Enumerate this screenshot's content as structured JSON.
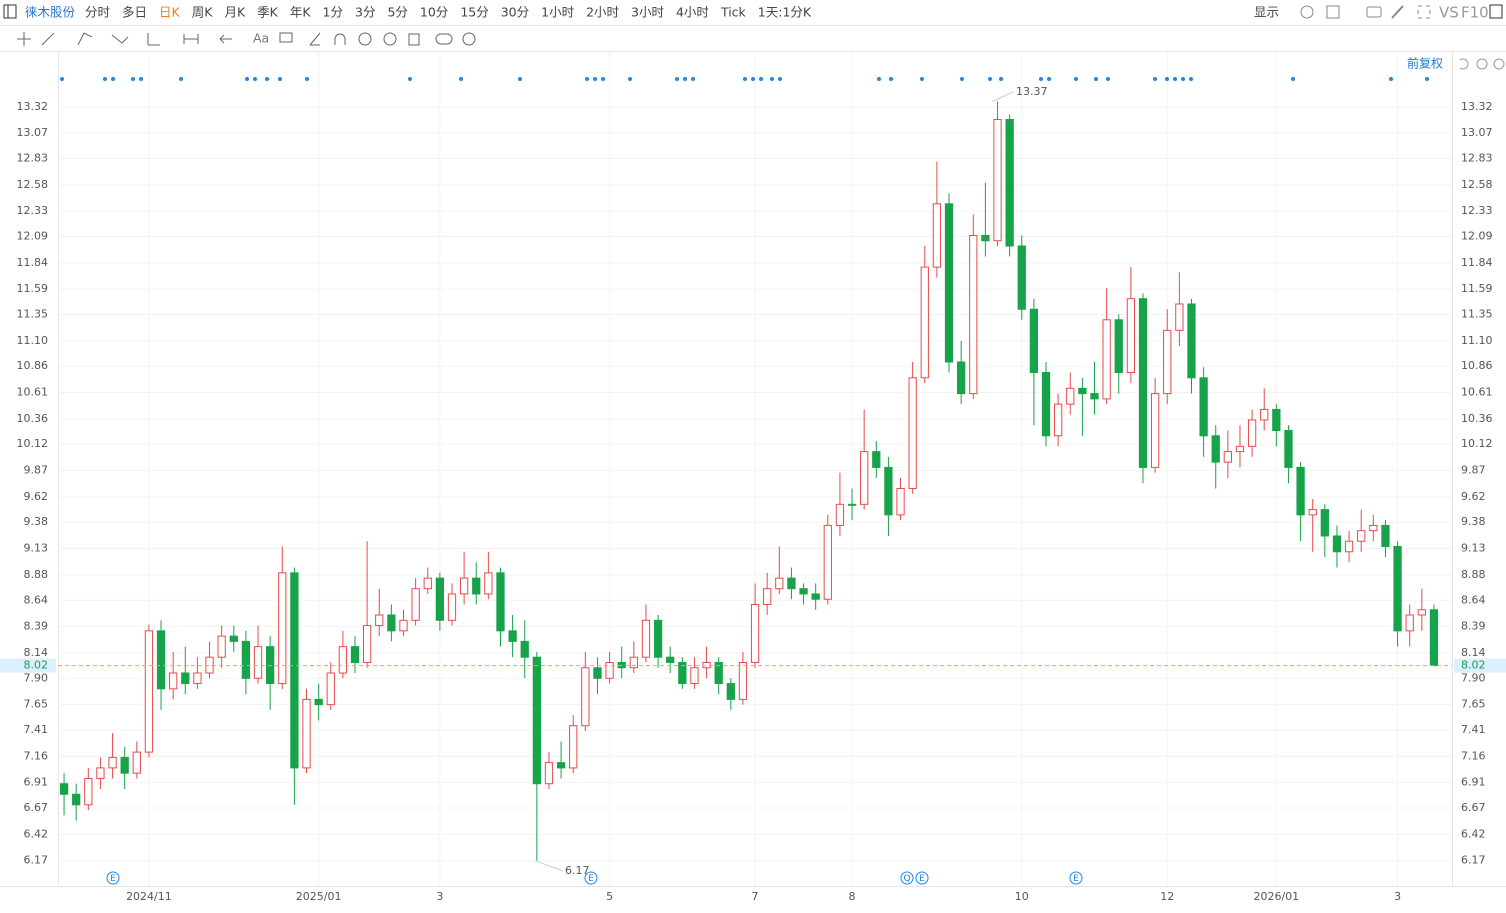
{
  "toolbar": {
    "symbol": "徕木股份",
    "periods": [
      "分时",
      "多日",
      "日K",
      "周K",
      "月K",
      "季K",
      "年K",
      "1分",
      "3分",
      "5分",
      "10分",
      "15分",
      "30分",
      "1小时",
      "2小时",
      "3小时",
      "4小时",
      "Tick",
      "1天:1分K"
    ],
    "active_period": "日K",
    "display": "显示",
    "vs": "VS",
    "f10": "F10",
    "text_tool": "Aa",
    "adjust": "前复权"
  },
  "chart_data": {
    "type": "candlestick",
    "up_color": "#e84a4a",
    "down_color": "#16a34a",
    "grid": true,
    "categories": [
      null,
      null,
      null,
      null,
      null,
      null,
      null,
      "2024/11",
      null,
      null,
      null,
      null,
      null,
      null,
      null,
      null,
      null,
      null,
      null,
      null,
      null,
      "2025/01",
      null,
      null,
      null,
      null,
      null,
      null,
      null,
      null,
      null,
      "3",
      null,
      null,
      null,
      null,
      null,
      null,
      null,
      null,
      null,
      null,
      null,
      null,
      null,
      "5",
      null,
      null,
      null,
      null,
      null,
      null,
      null,
      null,
      null,
      null,
      null,
      "7",
      null,
      null,
      null,
      null,
      null,
      null,
      null,
      "8",
      null,
      null,
      null,
      null,
      null,
      null,
      null,
      null,
      null,
      null,
      null,
      null,
      null,
      "10",
      null,
      null,
      null,
      null,
      null,
      null,
      null,
      null,
      null,
      null,
      null,
      "12",
      null,
      null,
      null,
      null,
      null,
      null,
      null,
      null,
      "2026/01",
      null,
      null,
      null,
      null,
      null,
      null,
      null,
      null,
      null,
      "3",
      null,
      null,
      null
    ],
    "open": [
      6.9,
      6.8,
      6.7,
      6.95,
      7.05,
      7.15,
      7.0,
      7.2,
      8.35,
      7.8,
      7.95,
      7.85,
      7.95,
      8.1,
      8.3,
      8.25,
      7.9,
      8.2,
      7.85,
      8.9,
      7.05,
      7.7,
      7.65,
      7.95,
      8.2,
      8.05,
      8.4,
      8.5,
      8.35,
      8.45,
      8.75,
      8.85,
      8.45,
      8.7,
      8.85,
      8.7,
      8.9,
      8.35,
      8.25,
      8.1,
      6.9,
      7.1,
      7.05,
      7.45,
      8.0,
      7.9,
      8.05,
      8.0,
      8.1,
      8.45,
      8.1,
      8.05,
      7.85,
      8.0,
      8.05,
      7.85,
      7.7,
      8.05,
      8.6,
      8.75,
      8.85,
      8.75,
      8.7,
      8.65,
      9.35,
      9.55,
      9.55,
      10.05,
      9.9,
      9.45,
      9.7,
      10.75,
      11.8,
      12.4,
      10.9,
      10.6,
      12.1,
      12.05,
      13.2,
      12.0,
      11.4,
      10.8,
      10.2,
      10.5,
      10.65,
      10.6,
      10.55,
      11.3,
      10.8,
      11.5,
      9.9,
      10.6,
      11.2,
      11.45,
      10.75,
      10.2,
      9.95,
      10.05,
      10.1,
      10.35,
      10.45,
      10.25,
      9.9,
      9.45,
      9.5,
      9.25,
      9.1,
      9.2,
      9.3,
      9.35,
      9.15,
      8.35,
      8.5,
      8.55
    ],
    "high": [
      7.0,
      6.9,
      7.05,
      7.15,
      7.38,
      7.25,
      7.3,
      8.41,
      8.45,
      8.15,
      8.2,
      8.1,
      8.25,
      8.4,
      8.4,
      8.35,
      8.4,
      8.3,
      9.15,
      8.95,
      7.8,
      7.85,
      8.05,
      8.35,
      8.3,
      9.2,
      8.75,
      8.6,
      8.55,
      8.85,
      8.95,
      8.9,
      8.8,
      9.1,
      9.0,
      9.1,
      8.95,
      8.5,
      8.45,
      8.15,
      7.2,
      7.3,
      7.55,
      8.15,
      8.1,
      8.15,
      8.2,
      8.25,
      8.6,
      8.5,
      8.2,
      8.1,
      8.1,
      8.2,
      8.1,
      7.9,
      8.15,
      8.8,
      8.9,
      9.15,
      8.95,
      8.8,
      8.8,
      9.45,
      9.85,
      9.7,
      10.45,
      10.15,
      10.0,
      9.8,
      10.9,
      12.0,
      12.8,
      12.5,
      11.1,
      12.3,
      12.6,
      13.37,
      13.25,
      12.1,
      11.5,
      10.9,
      10.6,
      10.8,
      10.75,
      10.9,
      11.6,
      11.35,
      11.8,
      11.55,
      10.75,
      11.4,
      11.75,
      11.5,
      10.85,
      10.3,
      10.25,
      10.3,
      10.45,
      10.65,
      10.5,
      10.3,
      9.95,
      9.6,
      9.55,
      9.35,
      9.3,
      9.5,
      9.45,
      9.4,
      9.2,
      8.6,
      8.75,
      8.6
    ],
    "low": [
      6.6,
      6.55,
      6.65,
      6.85,
      6.95,
      6.85,
      6.95,
      7.15,
      7.6,
      7.7,
      7.75,
      7.8,
      7.9,
      8.0,
      8.15,
      7.75,
      7.85,
      7.6,
      7.8,
      6.7,
      7.0,
      7.5,
      7.6,
      7.9,
      7.95,
      8.0,
      8.3,
      8.25,
      8.3,
      8.4,
      8.7,
      8.35,
      8.4,
      8.6,
      8.6,
      8.65,
      8.2,
      8.1,
      7.9,
      6.17,
      6.85,
      6.95,
      7.0,
      7.4,
      7.75,
      7.85,
      7.9,
      7.95,
      8.05,
      8.0,
      7.95,
      7.8,
      7.8,
      7.9,
      7.75,
      7.6,
      7.65,
      8.0,
      8.5,
      8.7,
      8.65,
      8.6,
      8.55,
      8.6,
      9.25,
      9.4,
      9.5,
      9.8,
      9.25,
      9.4,
      9.65,
      10.7,
      11.7,
      10.8,
      10.5,
      10.55,
      11.9,
      12.0,
      11.9,
      11.3,
      10.3,
      10.1,
      10.1,
      10.4,
      10.2,
      10.4,
      10.5,
      10.6,
      10.7,
      9.75,
      9.85,
      10.5,
      11.05,
      10.6,
      10.0,
      9.7,
      9.8,
      9.9,
      10.0,
      10.25,
      10.1,
      9.75,
      9.2,
      9.1,
      9.05,
      8.95,
      9.0,
      9.1,
      9.2,
      9.05,
      8.2,
      8.2,
      8.35,
      8.02
    ],
    "close": [
      6.8,
      6.7,
      6.95,
      7.05,
      7.15,
      7.0,
      7.2,
      8.35,
      7.8,
      7.95,
      7.85,
      7.95,
      8.1,
      8.3,
      8.25,
      7.9,
      8.2,
      7.85,
      8.9,
      7.05,
      7.7,
      7.65,
      7.95,
      8.2,
      8.05,
      8.4,
      8.5,
      8.35,
      8.45,
      8.75,
      8.85,
      8.45,
      8.7,
      8.85,
      8.7,
      8.9,
      8.35,
      8.25,
      8.1,
      6.9,
      7.1,
      7.05,
      7.45,
      8.0,
      7.9,
      8.05,
      8.0,
      8.1,
      8.45,
      8.1,
      8.05,
      7.85,
      8.0,
      8.05,
      7.85,
      7.7,
      8.05,
      8.6,
      8.75,
      8.85,
      8.75,
      8.7,
      8.65,
      9.35,
      9.55,
      9.55,
      10.05,
      9.9,
      9.45,
      9.7,
      10.75,
      11.8,
      12.4,
      10.9,
      10.6,
      12.1,
      12.05,
      13.2,
      12.0,
      11.4,
      10.8,
      10.2,
      10.5,
      10.65,
      10.6,
      10.55,
      11.3,
      10.8,
      11.5,
      9.9,
      10.6,
      11.2,
      11.45,
      10.75,
      10.2,
      9.95,
      10.05,
      10.1,
      10.35,
      10.45,
      10.25,
      9.9,
      9.45,
      9.5,
      9.25,
      9.1,
      9.2,
      9.3,
      9.35,
      9.15,
      8.35,
      8.5,
      8.55,
      8.02
    ],
    "ylim": [
      5.93,
      13.84
    ],
    "yticks": [
      6.17,
      6.42,
      6.67,
      6.91,
      7.16,
      7.41,
      7.65,
      {
        "value": 7.9,
        "label": "7.90"
      },
      8.14,
      8.39,
      8.64,
      8.88,
      9.13,
      9.38,
      9.62,
      9.87,
      10.12,
      10.36,
      10.61,
      10.86,
      {
        "value": 11.1,
        "label": "11.10"
      },
      11.35,
      11.59,
      11.84,
      12.09,
      12.33,
      12.58,
      12.83,
      13.07,
      13.32
    ],
    "high_label": 13.37,
    "low_label": 6.17,
    "last_price": 8.02,
    "events": [
      "E",
      "E",
      "Q",
      "E",
      "E"
    ]
  }
}
